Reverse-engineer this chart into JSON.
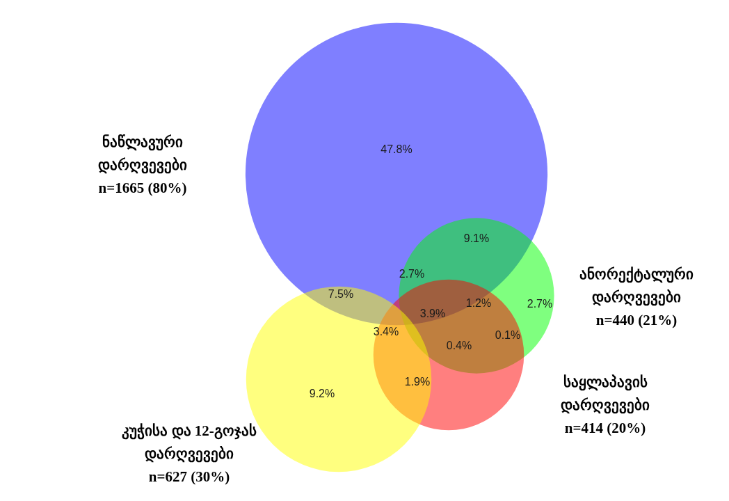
{
  "chart_data": {
    "type": "other",
    "categories": [
      "ნაწლავური დარღვევები",
      "ანორექტალური დარღვევები",
      "საყლაპავის დარღვევები",
      "კუჭისა და 12-გოჯას დარღვევები"
    ],
    "values": [
      1665,
      440,
      414,
      627
    ],
    "value_labels": [
      "n=1665 (80%)",
      "n=440 (21%)",
      "n=414 (20%)",
      "n=627 (30%)"
    ],
    "colors": [
      "#0000ff",
      "#00ff00",
      "#ff0000",
      "#ffff00"
    ],
    "annotations": [
      "47.8%",
      "9.1%",
      "2.7%",
      "7.5%",
      "3.9%",
      "1.2%",
      "2.7%",
      "3.4%",
      "0.4%",
      "0.1%",
      "1.9%",
      "9.2%"
    ]
  }
}
